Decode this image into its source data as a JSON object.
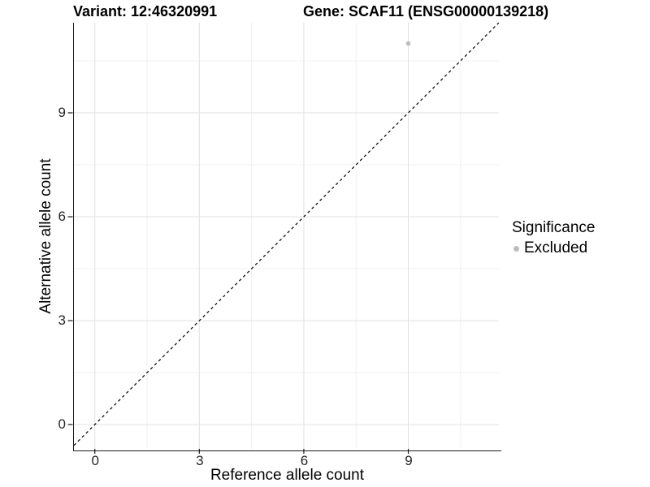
{
  "title": {
    "variant": "Variant: 12:46320991",
    "gene": "Gene: SCAF11 (ENSG00000139218)"
  },
  "chart_data": {
    "type": "scatter",
    "title": "Variant: 12:46320991   Gene: SCAF11 (ENSG00000139218)",
    "xlabel": "Reference allele count",
    "ylabel": "Alternative allele count",
    "xlim": [
      -0.6,
      11.6
    ],
    "ylim": [
      -0.7,
      11.6
    ],
    "x_ticks": [
      0,
      3,
      6,
      9
    ],
    "y_ticks": [
      0,
      3,
      6,
      9
    ],
    "x_minor_ticks": [
      1.5,
      4.5,
      7.5,
      10.5
    ],
    "y_minor_ticks": [
      1.5,
      4.5,
      7.5,
      10.5
    ],
    "grid": true,
    "legend_position": "right",
    "legend": {
      "title": "Significance",
      "items": [
        {
          "label": "Excluded",
          "color": "#bdbdbd"
        }
      ]
    },
    "series": [
      {
        "name": "Excluded",
        "color": "#bdbdbd",
        "points": [
          {
            "x": 9,
            "y": 11
          }
        ]
      }
    ],
    "reference_line": {
      "type": "identity y=x",
      "style": "dashed",
      "color": "#000000"
    },
    "colors": {
      "background": "#ffffff",
      "grid_major": "#e3e3e3",
      "grid_minor": "#f0f0f0",
      "axis_line": "#1a1a1a",
      "tick_text": "#262626"
    }
  }
}
